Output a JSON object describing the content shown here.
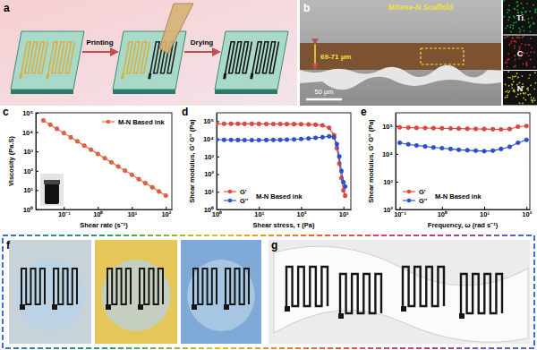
{
  "figure": {
    "panel_labels": [
      "a",
      "b",
      "c",
      "d",
      "e",
      "f",
      "g"
    ],
    "panel_a": {
      "steps": [
        "Printing",
        "Drying"
      ]
    },
    "panel_b": {
      "title": "MXene-N Scaffold",
      "thickness": "69-71 µm",
      "scale_bar": "50 µm",
      "eds_maps": [
        "Ti",
        "C",
        "N"
      ]
    }
  },
  "chart_data": [
    {
      "type": "line",
      "x_label": "Shear rate (s⁻¹)",
      "y_label": "Viscosity (Pa.S)",
      "log": true,
      "legend": "upper right",
      "xlim": [
        0.015,
        150
      ],
      "ylim": [
        1,
        100000
      ],
      "xticks": [
        {
          "value": 0.1,
          "label": "10⁻¹"
        },
        {
          "value": 1,
          "label": "10⁰"
        },
        {
          "value": 10,
          "label": "10¹"
        },
        {
          "value": 100,
          "label": "10²"
        }
      ],
      "yticks": [
        {
          "value": 1,
          "label": "10⁰"
        },
        {
          "value": 10,
          "label": "10¹"
        },
        {
          "value": 100,
          "label": "10²"
        },
        {
          "value": 1000,
          "label": "10³"
        },
        {
          "value": 10000,
          "label": "10⁴"
        },
        {
          "value": 100000,
          "label": "10⁵"
        }
      ],
      "x": [
        0.025,
        0.04,
        0.063,
        0.1,
        0.16,
        0.25,
        0.4,
        0.63,
        1,
        1.6,
        2.5,
        4,
        6.3,
        10,
        16,
        25,
        40,
        63,
        100
      ],
      "series": [
        {
          "name": "M-N Based ink",
          "color": "#e8613c",
          "marker": "circle",
          "line_style": "solid",
          "values": [
            40000,
            24100,
            14800,
            8950,
            5390,
            3330,
            2000,
            1230,
            745,
            448,
            277,
            167,
            102,
            62,
            37,
            23,
            14,
            8.5,
            5.2
          ]
        }
      ]
    },
    {
      "type": "line",
      "title": "M-N Based ink",
      "x_label": "Shear stress, τ (Pa)",
      "y_label": "Shear modulus, G' G'' (Pa)",
      "log": true,
      "legend": "lower left",
      "xlim": [
        1,
        1500
      ],
      "ylim": [
        1,
        300000
      ],
      "xticks": [
        {
          "value": 1,
          "label": "10⁰"
        },
        {
          "value": 10,
          "label": "10¹"
        },
        {
          "value": 100,
          "label": "10²"
        },
        {
          "value": 1000,
          "label": "10³"
        }
      ],
      "yticks": [
        {
          "value": 1,
          "label": "10⁰"
        },
        {
          "value": 10,
          "label": "10¹"
        },
        {
          "value": 100,
          "label": "10²"
        },
        {
          "value": 1000,
          "label": "10³"
        },
        {
          "value": 10000,
          "label": "10⁴"
        },
        {
          "value": 100000,
          "label": "10⁵"
        }
      ],
      "x": [
        1,
        1.5,
        2.2,
        3.2,
        4.6,
        6.8,
        10,
        15,
        22,
        32,
        46,
        68,
        100,
        150,
        220,
        320,
        460,
        600,
        700,
        800,
        900,
        1000,
        1100
      ],
      "series": [
        {
          "name": "G'",
          "color": "#e8453c",
          "marker": "circle",
          "line_style": "solid",
          "values": [
            72000,
            72000,
            71500,
            71500,
            71000,
            71000,
            70500,
            70000,
            70000,
            69500,
            69000,
            68500,
            68000,
            66000,
            63000,
            58000,
            42000,
            16000,
            3000,
            400,
            60,
            12,
            6
          ]
        },
        {
          "name": "G''",
          "color": "#2b4fd6",
          "marker": "circle",
          "line_style": "solid",
          "values": [
            9000,
            8800,
            8700,
            8600,
            8500,
            8500,
            8500,
            8600,
            8700,
            8800,
            9000,
            9300,
            9800,
            10500,
            11500,
            12500,
            14000,
            12000,
            5000,
            1000,
            150,
            35,
            20
          ]
        }
      ]
    },
    {
      "type": "line",
      "title": "M-N Based ink",
      "x_label": "Frequency, ω (rad s⁻¹)",
      "y_label": "Shear modulus, G' G'' (Pa)",
      "log": true,
      "legend": "lower left",
      "xlim": [
        0.08,
        120
      ],
      "ylim": [
        100,
        300000
      ],
      "xticks": [
        {
          "value": 0.1,
          "label": "10⁻¹"
        },
        {
          "value": 1,
          "label": "10⁰"
        },
        {
          "value": 10,
          "label": "10¹"
        },
        {
          "value": 100,
          "label": "10²"
        }
      ],
      "yticks": [
        {
          "value": 100,
          "label": "10²"
        },
        {
          "value": 1000,
          "label": "10³"
        },
        {
          "value": 10000,
          "label": "10⁴"
        },
        {
          "value": 100000,
          "label": "10⁵"
        }
      ],
      "x": [
        0.1,
        0.16,
        0.25,
        0.4,
        0.63,
        1,
        1.6,
        2.5,
        4,
        6.3,
        10,
        16,
        25,
        40,
        63,
        100
      ],
      "series": [
        {
          "name": "G'",
          "color": "#e8453c",
          "marker": "circle",
          "line_style": "solid",
          "values": [
            90000,
            88000,
            86000,
            85000,
            84000,
            83000,
            82000,
            81000,
            80000,
            79000,
            78000,
            77000,
            76000,
            78000,
            95000,
            100000
          ]
        },
        {
          "name": "G''",
          "color": "#2b4fd6",
          "marker": "circle",
          "line_style": "solid",
          "values": [
            25000,
            22000,
            20000,
            18500,
            17000,
            16000,
            15000,
            14000,
            13500,
            13000,
            12500,
            13000,
            15000,
            18000,
            25000,
            32000
          ]
        }
      ]
    }
  ]
}
